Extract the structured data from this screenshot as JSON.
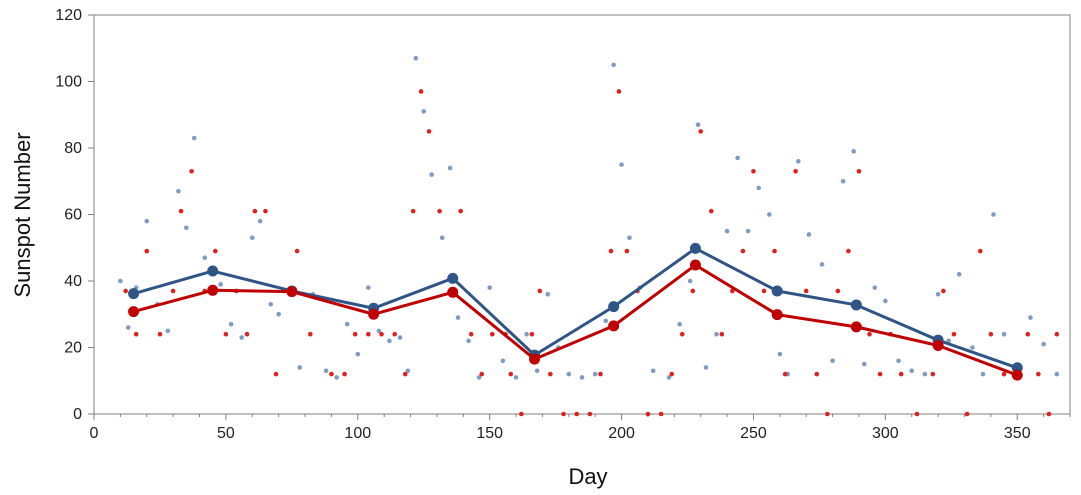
{
  "chart_data": {
    "type": "scatter",
    "title": "",
    "xlabel": "Day",
    "ylabel": "Sunspot Number",
    "xlim": [
      0,
      370
    ],
    "ylim": [
      0,
      120
    ],
    "xticks": [
      0,
      50,
      100,
      150,
      200,
      250,
      300,
      350
    ],
    "yticks": [
      0,
      20,
      40,
      60,
      80,
      100,
      120
    ],
    "grid": false,
    "colors": {
      "blue": "#2e5585",
      "red": "#c00000",
      "blue_points": "#7f9bc4",
      "red_points": "#e02020"
    },
    "series": [
      {
        "kind": "line",
        "color_key": "blue",
        "x": [
          15,
          45,
          75,
          106,
          136,
          167,
          197,
          228,
          259,
          289,
          320,
          350
        ],
        "y": [
          36.2,
          43.0,
          37.0,
          31.8,
          40.8,
          17.7,
          32.3,
          49.8,
          37.0,
          32.8,
          22.2,
          13.9
        ]
      },
      {
        "kind": "line",
        "color_key": "red",
        "x": [
          15,
          45,
          75,
          106,
          136,
          167,
          197,
          228,
          259,
          289,
          320,
          350
        ],
        "y": [
          30.8,
          37.2,
          36.8,
          30.0,
          36.6,
          16.5,
          26.5,
          44.8,
          29.9,
          26.2,
          20.6,
          11.7
        ]
      },
      {
        "kind": "points",
        "color_key": "blue_points",
        "x": [
          10,
          13,
          16,
          20,
          24,
          28,
          32,
          35,
          38,
          42,
          45,
          48,
          52,
          56,
          60,
          63,
          67,
          70,
          75,
          78,
          83,
          88,
          92,
          96,
          100,
          104,
          108,
          112,
          116,
          119,
          122,
          125,
          128,
          132,
          135,
          138,
          142,
          146,
          150,
          155,
          160,
          164,
          168,
          172,
          176,
          180,
          185,
          190,
          194,
          197,
          200,
          203,
          207,
          212,
          218,
          222,
          226,
          229,
          232,
          236,
          240,
          244,
          248,
          252,
          256,
          260,
          263,
          267,
          271,
          276,
          280,
          284,
          288,
          292,
          296,
          300,
          305,
          310,
          315,
          320,
          324,
          328,
          333,
          337,
          341,
          345,
          350,
          355,
          360,
          365
        ],
        "y": [
          40,
          26,
          38,
          58,
          33,
          25,
          67,
          56,
          83,
          47,
          44,
          39,
          27,
          23,
          53,
          58,
          33,
          30,
          37,
          14,
          36,
          13,
          11,
          27,
          18,
          38,
          25,
          22,
          23,
          13,
          107,
          91,
          72,
          53,
          74,
          29,
          22,
          11,
          38,
          16,
          11,
          24,
          13,
          36,
          20,
          12,
          11,
          12,
          28,
          105,
          75,
          53,
          38,
          13,
          11,
          27,
          40,
          87,
          14,
          24,
          55,
          77,
          55,
          68,
          60,
          18,
          12,
          76,
          54,
          45,
          16,
          70,
          79,
          15,
          38,
          34,
          16,
          13,
          12,
          36,
          22,
          42,
          20,
          12,
          60,
          24,
          12,
          29,
          21,
          12
        ]
      },
      {
        "kind": "points",
        "color_key": "red_points",
        "x": [
          12,
          16,
          20,
          25,
          30,
          33,
          37,
          42,
          46,
          50,
          54,
          58,
          61,
          65,
          69,
          72,
          77,
          82,
          90,
          95,
          99,
          104,
          109,
          114,
          118,
          121,
          124,
          127,
          131,
          135,
          139,
          143,
          147,
          151,
          156,
          158,
          162,
          166,
          169,
          173,
          178,
          183,
          188,
          192,
          196,
          199,
          202,
          206,
          210,
          215,
          219,
          223,
          227,
          230,
          234,
          238,
          242,
          246,
          250,
          254,
          258,
          262,
          266,
          270,
          274,
          278,
          282,
          286,
          290,
          294,
          298,
          302,
          306,
          312,
          318,
          322,
          326,
          331,
          336,
          340,
          345,
          350,
          354,
          358,
          362,
          365
        ],
        "y": [
          37,
          24,
          49,
          24,
          37,
          61,
          73,
          37,
          49,
          24,
          37,
          24,
          61,
          61,
          12,
          37,
          49,
          24,
          12,
          12,
          24,
          24,
          24,
          24,
          12,
          61,
          97,
          85,
          61,
          37,
          61,
          24,
          12,
          24,
          24,
          12,
          0,
          24,
          37,
          12,
          0,
          0,
          0,
          12,
          49,
          97,
          49,
          37,
          0,
          0,
          12,
          24,
          37,
          85,
          61,
          24,
          37,
          49,
          73,
          37,
          49,
          12,
          73,
          37,
          12,
          0,
          37,
          49,
          73,
          24,
          12,
          24,
          12,
          0,
          12,
          37,
          24,
          0,
          49,
          24,
          12,
          12,
          24,
          12,
          0,
          24
        ]
      }
    ]
  }
}
